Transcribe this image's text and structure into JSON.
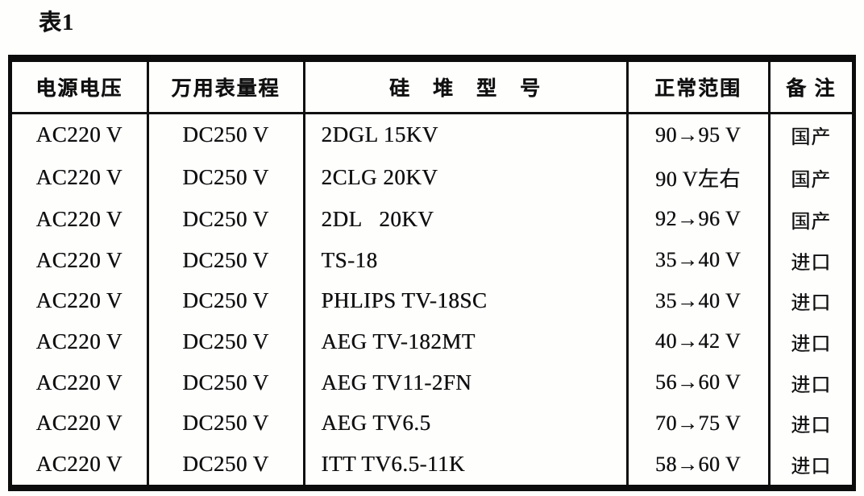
{
  "page": {
    "title": "表1"
  },
  "table": {
    "headers": [
      "电源电压",
      "万用表量程",
      "硅　堆　型　号",
      "正常范围",
      "备 注"
    ],
    "rows": [
      [
        "AC220 V",
        "DC250 V",
        "2DGL 15KV",
        "90→95 V",
        "国产"
      ],
      [
        "AC220 V",
        "DC250 V",
        "2CLG 20KV",
        "90 V左右",
        "国产"
      ],
      [
        "AC220 V",
        "DC250 V",
        "2DL   20KV",
        "92→96 V",
        "国产"
      ],
      [
        "AC220 V",
        "DC250 V",
        "TS-18",
        "35→40 V",
        "进口"
      ],
      [
        "AC220 V",
        "DC250 V",
        "PHLIPS TV-18SC",
        "35→40 V",
        "进口"
      ],
      [
        "AC220 V",
        "DC250 V",
        "AEG TV-182MT",
        "40→42 V",
        "进口"
      ],
      [
        "AC220 V",
        "DC250 V",
        "AEG TV11-2FN",
        "56→60 V",
        "进口"
      ],
      [
        "AC220 V",
        "DC250 V",
        "AEG TV6.5",
        "70→75 V",
        "进口"
      ],
      [
        "AC220 V",
        "DC250 V",
        "ITT TV6.5-11K",
        "58→60 V",
        "进口"
      ]
    ]
  }
}
